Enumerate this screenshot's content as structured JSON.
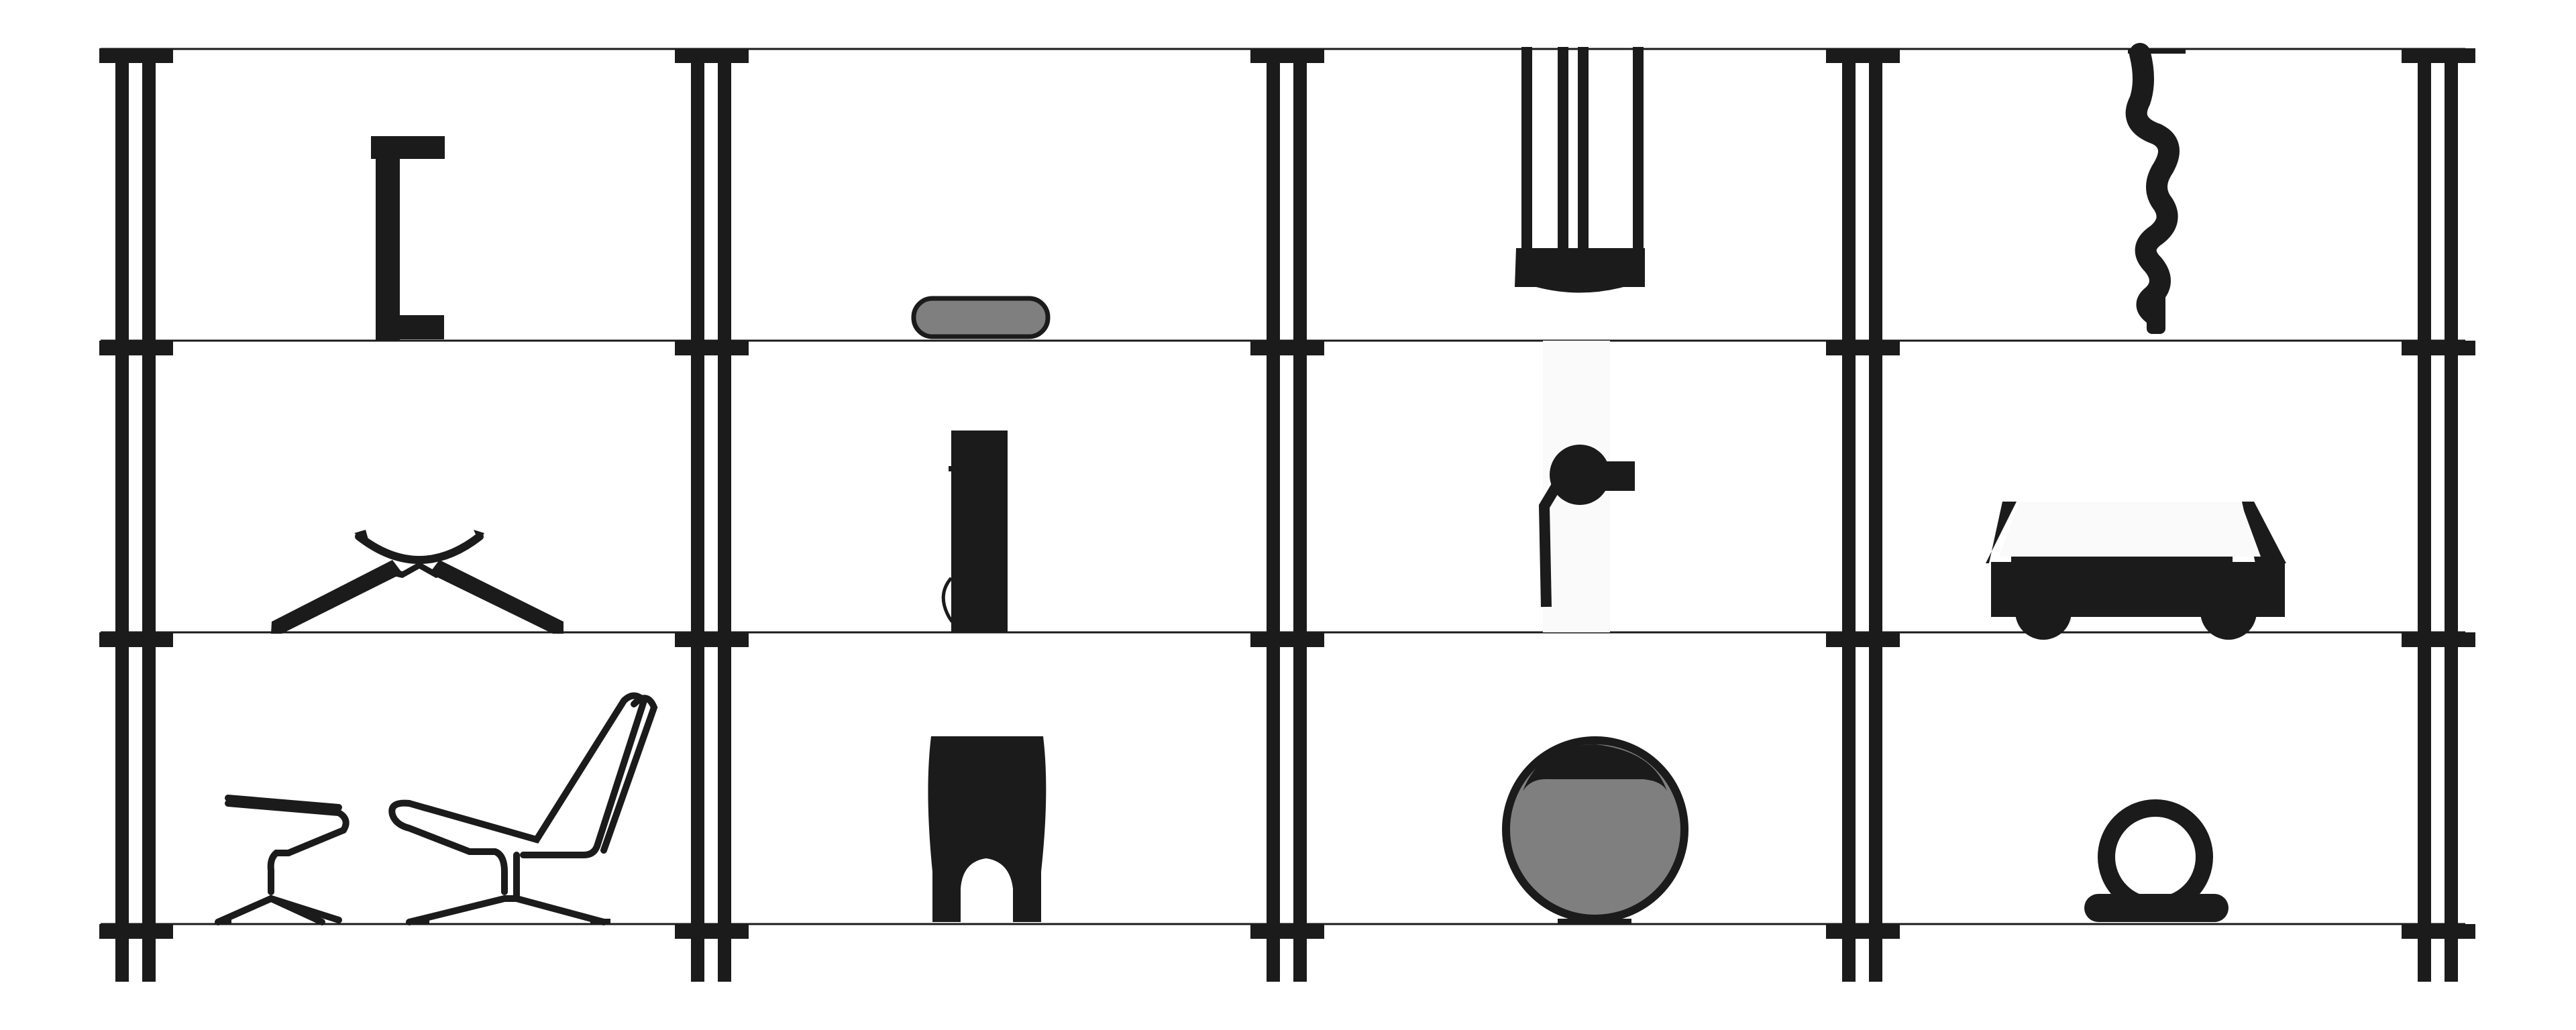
{
  "figure": {
    "colors": {
      "ink": "#1b1b1b",
      "fill_gray": "#7f7f7f",
      "background": "#ffffff",
      "lamp_glow": "#fafafa"
    },
    "shelf": {
      "columns": 4,
      "rows": 3
    },
    "cells": [
      {
        "row": 1,
        "col": 1,
        "icon": "c-shaped-side-table-icon"
      },
      {
        "row": 1,
        "col": 2,
        "icon": "rounded-cushion-icon"
      },
      {
        "row": 1,
        "col": 3,
        "icon": "swing-chair-icon"
      },
      {
        "row": 1,
        "col": 4,
        "icon": "twisted-pendant-lamp-icon"
      },
      {
        "row": 2,
        "col": 1,
        "icon": "x-base-folding-stool-icon"
      },
      {
        "row": 2,
        "col": 2,
        "icon": "tall-cabinet-icon"
      },
      {
        "row": 2,
        "col": 3,
        "icon": "floor-lamp-icon"
      },
      {
        "row": 2,
        "col": 4,
        "icon": "rolling-daybed-icon"
      },
      {
        "row": 3,
        "col": 1,
        "icon": "lounge-chair-and-ottoman-icon"
      },
      {
        "row": 3,
        "col": 2,
        "icon": "arched-stool-icon"
      },
      {
        "row": 3,
        "col": 3,
        "icon": "ball-chair-icon"
      },
      {
        "row": 3,
        "col": 4,
        "icon": "ring-ottoman-icon"
      }
    ]
  }
}
